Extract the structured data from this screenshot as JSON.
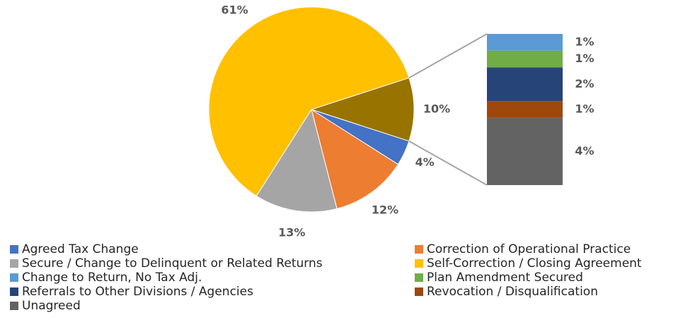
{
  "chart_data": {
    "type": "pie-of-bar",
    "slices": [
      {
        "name": "Agreed Tax Change",
        "color": "#4472c4",
        "value": 4,
        "value_label": "4%"
      },
      {
        "name": "Correction of Operational Practice",
        "color": "#ed7d31",
        "value": 12,
        "value_label": "12%"
      },
      {
        "name": "Secure / Change to Delinquent or Related Returns",
        "color": "#a5a5a5",
        "value": 13,
        "value_label": "13%"
      },
      {
        "name": "Self-Correction / Closing Agreement",
        "color": "#ffc000",
        "value": 61,
        "value_label": "61%"
      }
    ],
    "other": {
      "color": "#997300",
      "value": 10,
      "value_label": "10%"
    },
    "bar": [
      {
        "name": "Change to Return, No Tax Adj.",
        "color": "#5b9bd5",
        "value": 1,
        "value_label": "1%"
      },
      {
        "name": "Plan Amendment Secured",
        "color": "#70ad47",
        "value": 1,
        "value_label": "1%"
      },
      {
        "name": "Referrals to Other Divisions / Agencies",
        "color": "#264478",
        "value": 2,
        "value_label": "2%"
      },
      {
        "name": "Revocation / Disqualification",
        "color": "#9e480e",
        "value": 1,
        "value_label": "1%"
      },
      {
        "name": "Unagreed",
        "color": "#636363",
        "value": 4,
        "value_label": "4%"
      }
    ]
  }
}
